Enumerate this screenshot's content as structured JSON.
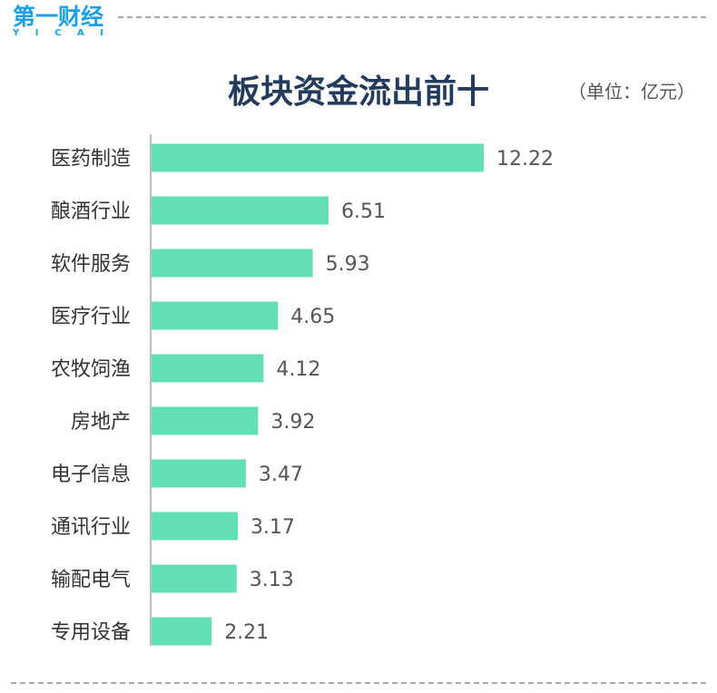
{
  "logo": {
    "main": "第一财经",
    "sub": [
      "Y",
      "I",
      "C",
      "A",
      "I"
    ]
  },
  "header": {
    "title": "板块资金流出前十",
    "unit": "（单位：亿元）"
  },
  "colors": {
    "bar": "#63dfb4",
    "axis": "#bdbdbd",
    "title": "#233b5c",
    "brand": "#1aa0e8"
  },
  "chart_data": {
    "type": "bar",
    "orientation": "horizontal",
    "title": "板块资金流出前十",
    "unit": "（单位：亿元）",
    "categories": [
      "医药制造",
      "酿酒行业",
      "软件服务",
      "医疗行业",
      "农牧饲渔",
      "房地产",
      "电子信息",
      "通讯行业",
      "输配电气",
      "专用设备"
    ],
    "values": [
      12.22,
      6.51,
      5.93,
      4.65,
      4.12,
      3.92,
      3.47,
      3.17,
      3.13,
      2.21
    ],
    "value_labels": [
      "12.22",
      "6.51",
      "5.93",
      "4.65",
      "4.12",
      "3.92",
      "3.47",
      "3.17",
      "3.13",
      "2.21"
    ],
    "xlim": [
      0,
      12.22
    ],
    "grid": false,
    "legend": "none"
  }
}
